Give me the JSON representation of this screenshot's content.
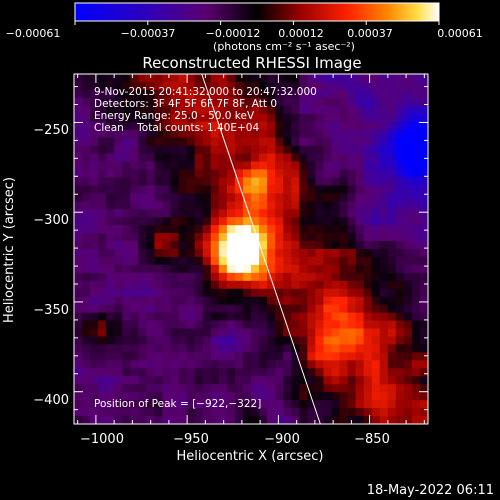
{
  "chart_data": {
    "type": "heatmap",
    "title": "Reconstructed RHESSI Image",
    "xlabel": "Heliocentric X (arcsec)",
    "ylabel": "Heliocentric Y (arcsec)",
    "xlim": [
      -1012,
      -818
    ],
    "ylim": [
      -418,
      -223
    ],
    "x_ticks": [
      -1000,
      -950,
      -900,
      -850
    ],
    "x_tick_labels": [
      "−1000",
      "−950",
      "−900",
      "−850"
    ],
    "y_ticks": [
      -250,
      -300,
      -350,
      -400
    ],
    "y_tick_labels": [
      "−250",
      "−300",
      "−350",
      "−400"
    ],
    "colorbar": {
      "range": [
        -0.00061,
        0.00061
      ],
      "tick_labels": [
        "−0.00061",
        "−0.00037",
        "−0.00012",
        "0.00012",
        "0.00037",
        "0.00061"
      ],
      "units_label": "(photons cm⁻² s⁻¹ asec⁻²)"
    },
    "peak": {
      "x": -922,
      "y": -322
    },
    "annotations": [
      "9-Nov-2013 20:41:32.000 to 20:47:32.000",
      "Detectors: 3F 4F 5F 6F 7F 8F, Att 0",
      "Energy Range: 25.0 - 50.0 keV",
      "Clean    Total counts: 1.40E+04"
    ],
    "peak_label": "Position of Peak = [−922,−322]",
    "limb_line": {
      "x_top": -942,
      "x_bottom": -877
    }
  },
  "footer": {
    "timestamp": "18-May-2022 06:11"
  }
}
